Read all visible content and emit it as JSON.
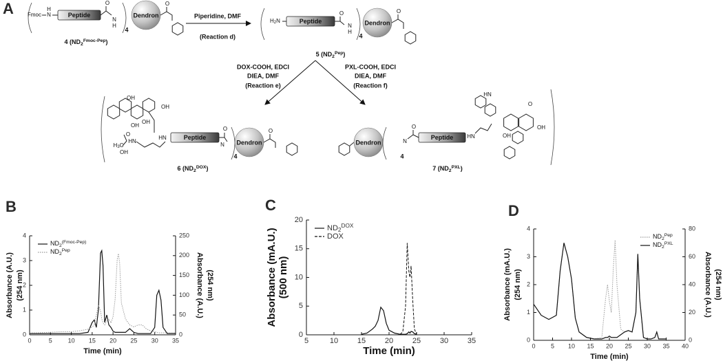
{
  "scheme": {
    "panel": "A",
    "peptide": "Peptide",
    "dendron": "Dendron",
    "fmoc": "Fmoc",
    "h": "H",
    "n": "N",
    "o": "O",
    "four": "4",
    "amine": [
      "H",
      "2",
      "N"
    ],
    "hn": "HN",
    "oh": "OH",
    "methyl": [
      "H",
      "3",
      "C"
    ],
    "compounds": [
      {
        "label": [
          "4 (ND",
          "2",
          "Fmoc-Pep",
          ")"
        ]
      },
      {
        "label": [
          "5 (ND",
          "2",
          "Pep",
          ")"
        ]
      },
      {
        "label": [
          "6 (ND",
          "2",
          "DOX",
          ")"
        ]
      },
      {
        "label": [
          "7 (ND",
          "2",
          "PXL",
          ")"
        ]
      }
    ],
    "reactions": [
      {
        "reagents": [
          "Piperidine, DMF"
        ],
        "name": "(Reaction d)"
      },
      {
        "reagents": [
          "DOX-COOH, EDCI",
          "DIEA, DMF"
        ],
        "name": "(Reaction e)"
      },
      {
        "reagents": [
          "PXL-COOH, EDCI",
          "DIEA, DMF"
        ],
        "name": "(Reaction f)"
      }
    ]
  },
  "chart_data": [
    {
      "type": "line",
      "panel": "B",
      "x_label": "Time (min)",
      "y_label": [
        "Absorbance (A.U.)",
        "(254 nm)"
      ],
      "y2_label": [
        "Absorbance (A.U.)",
        "(254 nm)"
      ],
      "x": [
        0,
        2,
        4,
        6,
        8,
        10,
        12,
        14,
        15,
        15.5,
        16,
        16.5,
        17,
        17.3,
        17.6,
        18,
        18.5,
        19,
        19.5,
        20,
        20.5,
        21,
        21.3,
        21.6,
        22,
        23,
        24,
        25,
        26,
        27,
        28,
        29,
        30,
        30.5,
        31,
        31.5,
        32,
        33,
        35
      ],
      "series": [
        {
          "name": [
            "ND",
            "2",
            "(Fmoc-Pep)"
          ],
          "color": "#111111",
          "dash": "solid",
          "axis": "y",
          "values": [
            0.05,
            0.05,
            0.05,
            0.05,
            0.05,
            0.05,
            0.05,
            0.1,
            0.5,
            0.6,
            0.3,
            1.0,
            3.3,
            3.4,
            2.8,
            0.5,
            0.8,
            0.4,
            0.3,
            0.15,
            0.1,
            0.1,
            0.1,
            0.1,
            0.1,
            0.1,
            0.25,
            0.1,
            0.05,
            0.05,
            0.05,
            0.05,
            0.3,
            1.6,
            1.8,
            1.4,
            0.3,
            0.05,
            0.05
          ]
        },
        {
          "name": [
            "ND",
            "2",
            "Pep"
          ],
          "color": "#999999",
          "dash": "dotted",
          "axis": "y2",
          "values": [
            5,
            5,
            6,
            7,
            8,
            8,
            10,
            14,
            20,
            25,
            50,
            75,
            60,
            40,
            30,
            25,
            35,
            40,
            30,
            45,
            90,
            190,
            205,
            180,
            80,
            40,
            25,
            20,
            25,
            25,
            15,
            10,
            8,
            6,
            5,
            5,
            5,
            5,
            5
          ]
        }
      ],
      "xlim": [
        0,
        35
      ],
      "xticks": [
        0,
        5,
        10,
        15,
        20,
        25,
        30,
        35
      ],
      "ylim": [
        0,
        4
      ],
      "yticks": [
        0,
        1,
        2,
        3,
        4
      ],
      "y2lim": [
        0,
        250
      ],
      "y2ticks": [
        0,
        50,
        100,
        150,
        200,
        250
      ],
      "legend": "upper left"
    },
    {
      "type": "line",
      "panel": "C",
      "x_label": "Time (min)",
      "y_label": [
        "Absorbance (mA.U.)",
        "(500 nm)"
      ],
      "x": [
        15,
        16,
        17,
        17.5,
        18,
        18.5,
        19,
        19.5,
        20,
        21,
        22,
        22.5,
        23,
        23.3,
        23.6,
        23.8,
        24,
        24.3,
        24.6,
        25
      ],
      "series": [
        {
          "name": [
            "ND",
            "2",
            "DOX"
          ],
          "color": "#111111",
          "dash": "solid",
          "axis": "y",
          "values": [
            0.1,
            0.3,
            1.0,
            1.5,
            2.5,
            4.8,
            4.2,
            2.0,
            0.8,
            0.3,
            0.1,
            0.1,
            0.1,
            0.2,
            0.5,
            0.3,
            0.6,
            0.5,
            0.2,
            0.1
          ]
        },
        {
          "name": [
            "DOX"
          ],
          "color": "#111111",
          "dash": "dashed",
          "axis": "y",
          "values": [
            null,
            null,
            null,
            null,
            null,
            null,
            null,
            null,
            null,
            null,
            0.1,
            0.5,
            5,
            16,
            11,
            10,
            12,
            6,
            1,
            0.1
          ]
        }
      ],
      "xlim": [
        5,
        35
      ],
      "xticks": [
        5,
        10,
        15,
        20,
        25,
        30,
        35
      ],
      "ylim": [
        0,
        20
      ],
      "yticks": [
        0,
        5,
        10,
        15,
        20
      ],
      "legend": "upper left"
    },
    {
      "type": "line",
      "panel": "D",
      "x_label": "Time (min)",
      "y_label": [
        "Absorbance (mA.U.)",
        "(254 nm)"
      ],
      "y2_label": [
        "Absorbance (A.U.)",
        "(254 nm)"
      ],
      "x": [
        0,
        2,
        4,
        6,
        7,
        8,
        9,
        10,
        11,
        12,
        14,
        16,
        18,
        19,
        19.5,
        20,
        20.5,
        21,
        21.5,
        22,
        23,
        24,
        25,
        26,
        27,
        27.5,
        28,
        29,
        30,
        31,
        32,
        32.5,
        33,
        35
      ],
      "series": [
        {
          "name": [
            "ND",
            "2",
            "Pep"
          ],
          "color": "#999999",
          "dash": "dotted",
          "axis": "y2",
          "values": [
            26,
            18,
            15,
            18,
            50,
            70,
            60,
            44,
            16,
            6,
            2,
            1,
            2,
            30,
            40,
            28,
            20,
            50,
            72,
            40,
            8,
            6,
            7,
            6,
            20,
            62,
            30,
            2,
            1,
            1,
            2,
            6,
            1,
            1
          ]
        },
        {
          "name": [
            "ND",
            "2",
            "PXL"
          ],
          "color": "#111111",
          "dash": "solid",
          "axis": "y",
          "values": [
            1.3,
            0.9,
            0.75,
            0.9,
            2.5,
            3.5,
            3.0,
            2.2,
            0.8,
            0.3,
            0.1,
            0.05,
            0.05,
            0.1,
            0.1,
            0.15,
            0.1,
            0.1,
            0.1,
            0.1,
            0.2,
            0.3,
            0.35,
            0.3,
            1.0,
            3.1,
            1.5,
            0.1,
            0.05,
            0.05,
            0.1,
            0.3,
            0.05,
            0.05
          ]
        }
      ],
      "xlim": [
        0,
        40
      ],
      "xticks": [
        0,
        5,
        10,
        15,
        20,
        25,
        30,
        35,
        40
      ],
      "ylim": [
        0,
        4
      ],
      "yticks": [
        0,
        1,
        2,
        3,
        4
      ],
      "y2lim": [
        0,
        80
      ],
      "y2ticks": [
        0,
        20,
        40,
        60,
        80
      ],
      "legend": "upper right"
    }
  ]
}
